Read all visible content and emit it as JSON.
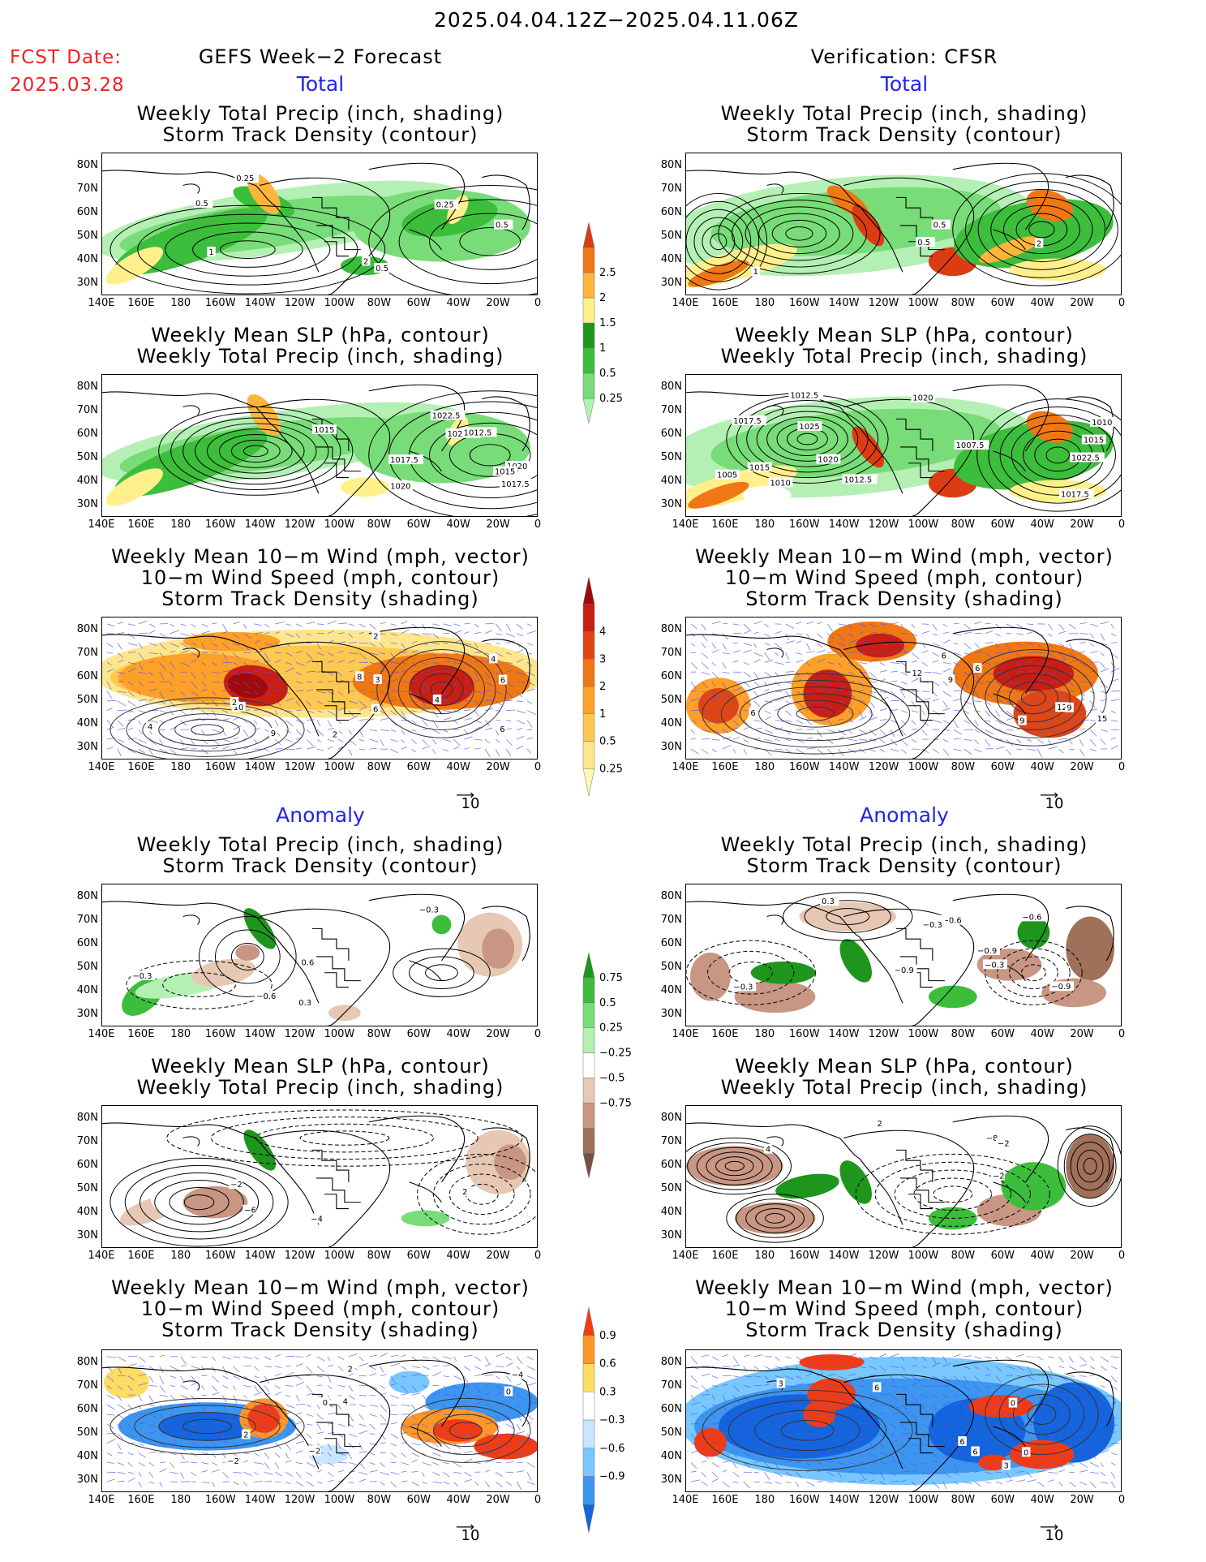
{
  "header": {
    "period": "2025.04.04.12Z−2025.04.11.06Z",
    "fcst_label": "FCST Date:",
    "fcst_date": "2025.03.28",
    "left_title": "GEFS Week−2 Forecast",
    "right_title": "Verification: CFSR"
  },
  "sections": {
    "total": "Total",
    "anomaly": "Anomaly"
  },
  "panel_titles": {
    "precip": "Weekly Total Precip (inch, shading)\nStorm Track Density (contour)",
    "slp": "Weekly Mean SLP (hPa, contour)\nWeekly Total Precip (inch, shading)",
    "wind": "Weekly Mean 10−m Wind (mph, vector)\n10−m Wind Speed (mph, contour)\nStorm Track Density (shading)"
  },
  "axes": {
    "lat_ticks": [
      "80N",
      "70N",
      "60N",
      "50N",
      "40N",
      "30N"
    ],
    "lon_ticks": [
      "140E",
      "160E",
      "180",
      "160W",
      "140W",
      "120W",
      "100W",
      "80W",
      "60W",
      "40W",
      "20W",
      "0"
    ]
  },
  "vector_ref": "10",
  "colorbars": {
    "precip_total": {
      "levels": [
        "0.25",
        "0.5",
        "1",
        "1.5",
        "2",
        "2.5"
      ],
      "colors": [
        "#b4f0b4",
        "#78dc78",
        "#3cbe3c",
        "#1e961e",
        "#fff08c",
        "#ffb43c",
        "#f07814",
        "#dc3c14"
      ]
    },
    "storm_total": {
      "levels": [
        "0.25",
        "0.5",
        "1",
        "2",
        "3",
        "4"
      ],
      "colors": [
        "#fff5b4",
        "#ffe68c",
        "#ffc850",
        "#ffa028",
        "#f07814",
        "#e04614",
        "#c81e14",
        "#a00a0a"
      ]
    },
    "precip_anom": {
      "levels": [
        "0.75",
        "0.5",
        "0.25",
        "−0.25",
        "−0.5",
        "−0.75"
      ],
      "colors": [
        "#1e961e",
        "#3cbe3c",
        "#78dc78",
        "#b4f0b4",
        "#ffffff",
        "#e6c8b4",
        "#c89682",
        "#a0705a",
        "#785040"
      ]
    },
    "storm_anom": {
      "levels": [
        "0.9",
        "0.6",
        "0.3",
        "−0.3",
        "−0.6",
        "−0.9"
      ],
      "colors": [
        "#f03c14",
        "#ff9628",
        "#ffdc64",
        "#ffffff",
        "#c8e6ff",
        "#78c8ff",
        "#3c96f0",
        "#1464dc"
      ]
    }
  },
  "contour_labels": {
    "p1": [
      "0.5",
      "0.25",
      "1",
      "0.5",
      "0.25",
      "2",
      "0.5"
    ],
    "p2": [
      "1",
      "2",
      "0.5",
      "0.5"
    ],
    "p3": [
      "1017.5",
      "1020",
      "1022.5",
      "1015",
      "1020",
      "1022.5",
      "1012.5",
      "1015",
      "1017.5"
    ],
    "p4": [
      "1025",
      "1015",
      "1017.5",
      "1012.5",
      "1022.5",
      "1015",
      "1017.5",
      "1020",
      "1010",
      "1012.5",
      "1020",
      "1005",
      "1007.5",
      "1010"
    ],
    "p5": [
      "6",
      "4",
      "2",
      "3",
      "6",
      "4",
      "2",
      "10",
      "8",
      "6",
      "9",
      "2",
      "4"
    ],
    "p6": [
      "6",
      "9",
      "12",
      "15",
      "6",
      "9",
      "12",
      "6",
      "9"
    ],
    "p7": [
      "−0.3",
      "−0.6",
      "−0.3",
      "0.6",
      "0.3"
    ],
    "p8": [
      "−0.3",
      "−0.3",
      "−0.6",
      "−0.9",
      "−0.9",
      "−0.6",
      "0.3",
      "−0.9",
      "−0.3"
    ],
    "p9": [
      "−6",
      "−4",
      "−2",
      "2"
    ],
    "p10": [
      "−8",
      "2",
      "−2",
      "4",
      "−2"
    ],
    "p11": [
      "−2",
      "2",
      "−4",
      "4",
      "0",
      "2",
      "0",
      "−2"
    ],
    "p12": [
      "6",
      "3",
      "0",
      "6",
      "3",
      "6",
      "0"
    ]
  }
}
